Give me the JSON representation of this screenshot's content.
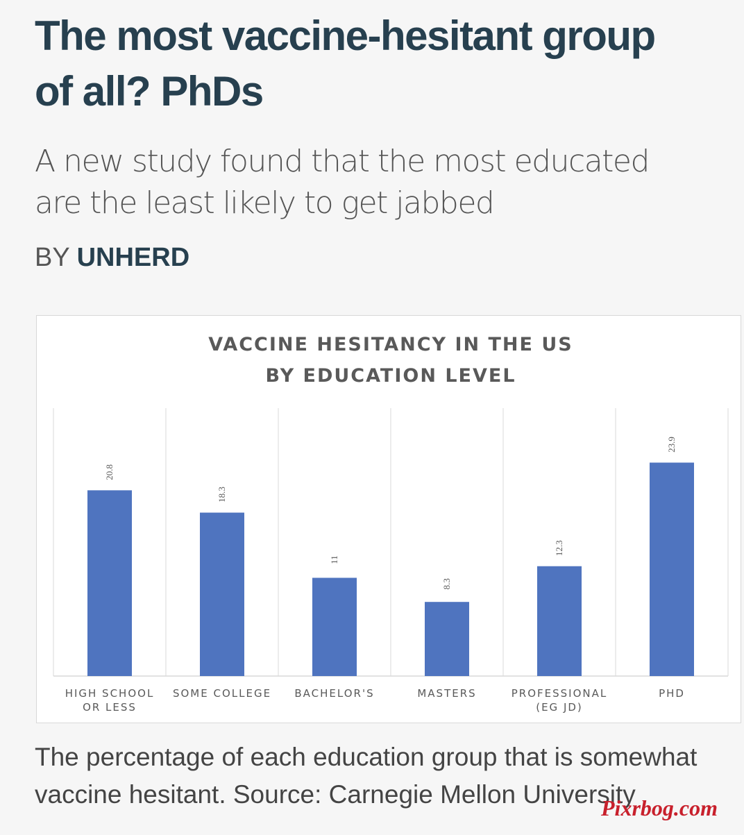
{
  "article": {
    "headline_line1": "The most vaccine-hesitant group",
    "headline_line2": "of all? PhDs",
    "standfirst_line1": "A new study found that the most educated",
    "standfirst_line2": "are the least likely to get jabbed",
    "byline_prefix": "BY",
    "byline_author": "UNHERD",
    "caption_line1": "The percentage of each education group that is somewhat",
    "caption_line2": "vaccine hesitant. Source: Carnegie Mellon University"
  },
  "watermark": "Pixrbog.com",
  "chart_data": {
    "type": "bar",
    "title_lines": [
      "VACCINE HESITANCY IN THE US",
      "BY EDUCATION LEVEL"
    ],
    "categories": [
      [
        "HIGH SCHOOL",
        "OR LESS"
      ],
      [
        "SOME COLLEGE"
      ],
      [
        "BACHELOR'S"
      ],
      [
        "MASTERS"
      ],
      [
        "PROFESSIONAL",
        "(EG JD)"
      ],
      [
        "PHD"
      ]
    ],
    "values": [
      20.8,
      18.3,
      11,
      8.3,
      12.3,
      23.9
    ],
    "data_labels": [
      "20.8",
      "18.3",
      "11",
      "8.3",
      "12.3",
      "23.9"
    ],
    "ylim": [
      0,
      30
    ],
    "bar_color": "#4f74bf",
    "grid": "vertical category separators",
    "data_label_orientation": "rotated vertical"
  }
}
